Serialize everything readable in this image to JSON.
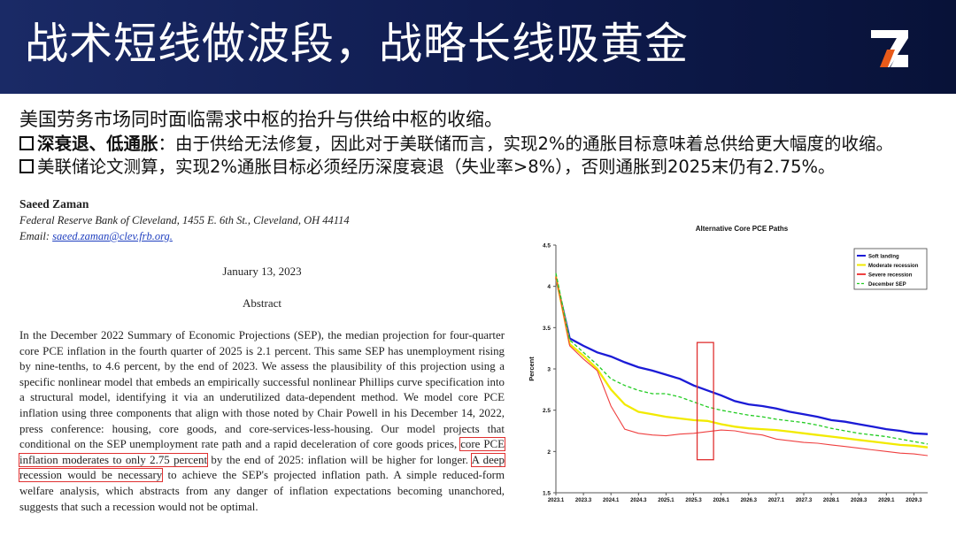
{
  "header": {
    "title": "战术短线做波段，战略长线吸黄金",
    "logo": "logo-icon",
    "colors": {
      "background": "#0f1b4e",
      "logo_white": "#ffffff",
      "logo_accent": "#e85a1a"
    }
  },
  "bullets": {
    "intro": "美国劳务市场同时面临需求中枢的抬升与供给中枢的收缩。",
    "item1_label": "深衰退、低通胀",
    "item1_text": "：由于供给无法修复，因此对于美联储而言，实现2%的通胀目标意味着总供给更大幅度的收缩。",
    "item2_text": "美联储论文测算，实现2%通胀目标必须经历深度衰退（失业率>8%），否则通胀到2025末仍有2.75%。"
  },
  "paper": {
    "author": "Saeed Zaman",
    "affiliation": "Federal Reserve Bank of Cleveland, 1455 E. 6th St., Cleveland, OH  44114",
    "email_label": "Email: ",
    "email": "saeed.zaman@clev.frb.org.",
    "date": "January 13, 2023",
    "abstract_heading": "Abstract",
    "abstract_part1": "In the December 2022 Summary of Economic Projections (SEP), the median projection for four-quarter core PCE inflation in the fourth quarter of 2025 is 2.1 percent. This same SEP has unemployment rising by nine-tenths, to 4.6 percent, by the end of 2023. We assess the plausibility of this projection using a specific nonlinear model that embeds an empirically successful nonlinear Phillips curve specification into a structural model, identifying it via an underutilized data-dependent method. We model core PCE inflation using three components that align with those noted by Chair Powell in his December 14, 2022, press conference: housing, core goods, and core-services-less-housing. Our model projects that conditional on the SEP unemployment rate path and a rapid deceleration of core goods prices,",
    "abstract_highlight1": "core PCE inflation moderates to only 2.75 percent",
    "abstract_part2": " by the end of 2025: inflation will be higher for longer. ",
    "abstract_highlight2": "A deep recession would be necessary",
    "abstract_part3": " to achieve the SEP's projected inflation path. A simple reduced-form welfare analysis, which abstracts from any danger of inflation expectations becoming unanchored, suggests that such a recession would not be optimal.",
    "highlight_color": "#e03030"
  },
  "chart_data": {
    "type": "line",
    "title": "Alternative Core PCE Paths",
    "ylabel": "Percent",
    "xlabel": "",
    "ylim": [
      1.5,
      4.5
    ],
    "yticks": [
      "1.5",
      "2",
      "2.5",
      "3",
      "3.5",
      "4",
      "4.5"
    ],
    "x": [
      "2023.1",
      "2023.2",
      "2023.3",
      "2023.4",
      "2024.1",
      "2024.2",
      "2024.3",
      "2024.4",
      "2025.1",
      "2025.2",
      "2025.3",
      "2025.4",
      "2026.1",
      "2026.2",
      "2026.3",
      "2026.4",
      "2027.1",
      "2027.2",
      "2027.3",
      "2027.4",
      "2028.1",
      "2028.2",
      "2028.3",
      "2028.4",
      "2029.1",
      "2029.2",
      "2029.3",
      "2029.4"
    ],
    "xticks": [
      "2023.1",
      "2023.3",
      "2024.1",
      "2024.3",
      "2025.1",
      "2025.3",
      "2026.1",
      "2026.3",
      "2027.1",
      "2027.3",
      "2028.1",
      "2028.3",
      "2029.1",
      "2029.3"
    ],
    "legend_position": "top-right",
    "grid": false,
    "highlight_box": {
      "x_from": "2025.3",
      "x_to": "2025.4",
      "y_from": 1.9,
      "y_to": 3.32,
      "color": "#e03030"
    },
    "series": [
      {
        "name": "Soft landing",
        "color": "#1b1bd6",
        "dash": false,
        "values": [
          4.1,
          3.37,
          3.28,
          3.2,
          3.15,
          3.08,
          3.02,
          2.98,
          2.93,
          2.88,
          2.8,
          2.74,
          2.68,
          2.61,
          2.57,
          2.55,
          2.52,
          2.48,
          2.45,
          2.42,
          2.38,
          2.36,
          2.33,
          2.3,
          2.27,
          2.25,
          2.22,
          2.21
        ]
      },
      {
        "name": "Moderate recession",
        "color": "#f2ea00",
        "dash": false,
        "values": [
          4.12,
          3.3,
          3.16,
          3.0,
          2.75,
          2.57,
          2.48,
          2.45,
          2.42,
          2.4,
          2.38,
          2.37,
          2.33,
          2.3,
          2.28,
          2.27,
          2.26,
          2.24,
          2.22,
          2.2,
          2.18,
          2.16,
          2.14,
          2.12,
          2.1,
          2.08,
          2.07,
          2.05
        ]
      },
      {
        "name": "Severe recession",
        "color": "#ef4040",
        "dash": false,
        "values": [
          4.12,
          3.28,
          3.12,
          2.98,
          2.55,
          2.27,
          2.22,
          2.2,
          2.19,
          2.21,
          2.22,
          2.24,
          2.26,
          2.25,
          2.22,
          2.2,
          2.15,
          2.13,
          2.11,
          2.1,
          2.08,
          2.06,
          2.04,
          2.02,
          2.0,
          1.98,
          1.97,
          1.95
        ]
      },
      {
        "name": "December SEP",
        "color": "#22cc22",
        "dash": true,
        "values": [
          4.16,
          3.35,
          3.2,
          3.05,
          2.88,
          2.8,
          2.74,
          2.7,
          2.7,
          2.66,
          2.6,
          2.54,
          2.5,
          2.47,
          2.44,
          2.42,
          2.39,
          2.37,
          2.35,
          2.32,
          2.28,
          2.25,
          2.22,
          2.2,
          2.18,
          2.15,
          2.12,
          2.09
        ]
      }
    ]
  }
}
